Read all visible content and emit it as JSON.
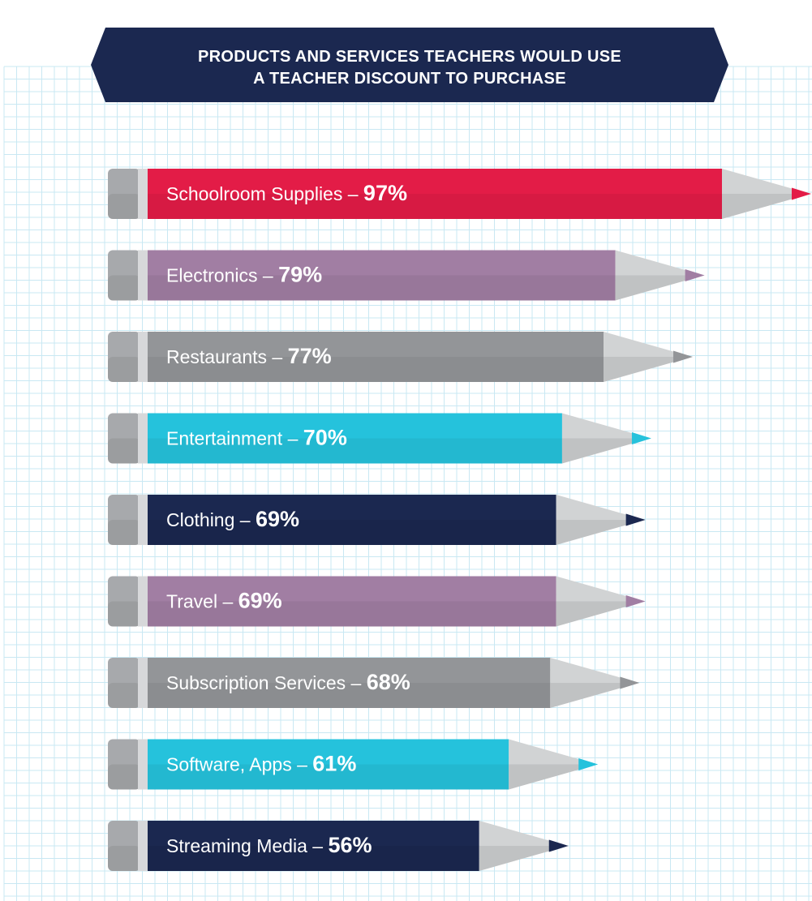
{
  "chart_data": {
    "type": "bar",
    "orientation": "horizontal",
    "title": "PRODUCTS AND SERVICES TEACHERS WOULD USE A TEACHER DISCOUNT TO PURCHASE",
    "title_lines": [
      "PRODUCTS AND SERVICES TEACHERS WOULD USE",
      "A TEACHER DISCOUNT TO PURCHASE"
    ],
    "categories": [
      "Schoolroom Supplies",
      "Electronics",
      "Restaurants",
      "Entertainment",
      "Clothing",
      "Travel",
      "Subscription Services",
      "Software, Apps",
      "Streaming Media"
    ],
    "values": [
      97,
      79,
      77,
      70,
      69,
      69,
      68,
      61,
      56
    ],
    "value_labels": [
      "97%",
      "79%",
      "77%",
      "70%",
      "69%",
      "69%",
      "68%",
      "61%",
      "56%"
    ],
    "label_separator": " – ",
    "unit": "%",
    "xlim": [
      0,
      100
    ],
    "grid": true,
    "colors": [
      "#e31c47",
      "#a17ea3",
      "#939598",
      "#25c2dc",
      "#1b2850",
      "#a17ea3",
      "#939598",
      "#25c2dc",
      "#1b2850"
    ]
  },
  "theme": {
    "banner_color": "#1b2850",
    "grid_color": "#c9e8f3",
    "eraser_color": "#a7a9ac",
    "ferrule_color": "#d7d8da",
    "wood_color": "#d1d3d4"
  }
}
